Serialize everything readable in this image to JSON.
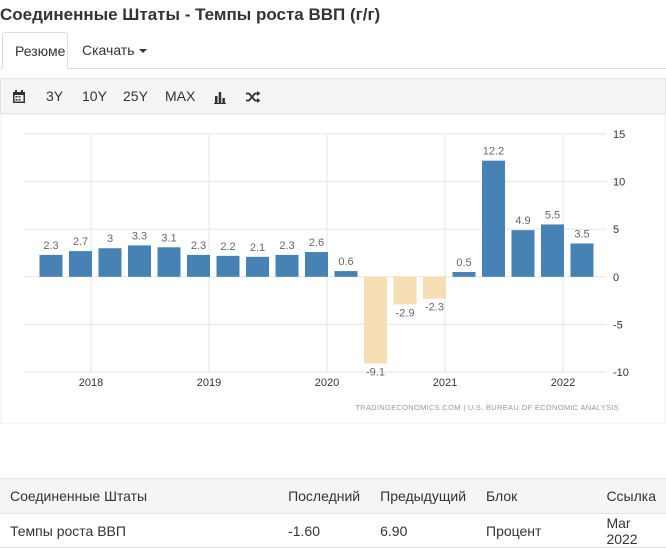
{
  "page": {
    "title": "Соединенные Штаты - Темпы роста ВВП (г/г)"
  },
  "tabs": {
    "summary": "Резюме",
    "download": "Скачать"
  },
  "toolbar": {
    "r3y": "3Y",
    "r10y": "10Y",
    "r25y": "25Y",
    "rmax": "MAX",
    "icons": [
      "calendar-icon",
      "bar-chart-icon",
      "shuffle-icon"
    ]
  },
  "source": "TRADINGECONOMICS.COM | U.S. BUREAU OF ECONOMIC ANALYSIS",
  "chart_data": {
    "type": "bar",
    "title": "",
    "xlabel": "",
    "ylabel": "",
    "ylim": [
      -10,
      15
    ],
    "yticks": [
      15,
      10,
      5,
      0,
      -5,
      -10
    ],
    "xticks": [
      "2018",
      "2019",
      "2020",
      "2021",
      "2022"
    ],
    "grid": true,
    "colors": {
      "positive": "#4682b4",
      "negative": "#f5deb3"
    },
    "series": [
      {
        "values": [
          2.3,
          2.7,
          3,
          3.3,
          3.1,
          2.3,
          2.2,
          2.1,
          2.3,
          2.6,
          0.6,
          -9.1,
          -2.9,
          -2.3,
          0.5,
          12.2,
          4.9,
          5.5,
          3.5
        ]
      }
    ]
  },
  "table": {
    "headers": [
      "Соединенные Штаты",
      "Последний",
      "Предыдущий",
      "Блок",
      "Ссылка"
    ],
    "rows": [
      [
        "Темпы роста ВВП",
        "-1.60",
        "6.90",
        "Процент",
        "Mar 2022"
      ]
    ]
  }
}
